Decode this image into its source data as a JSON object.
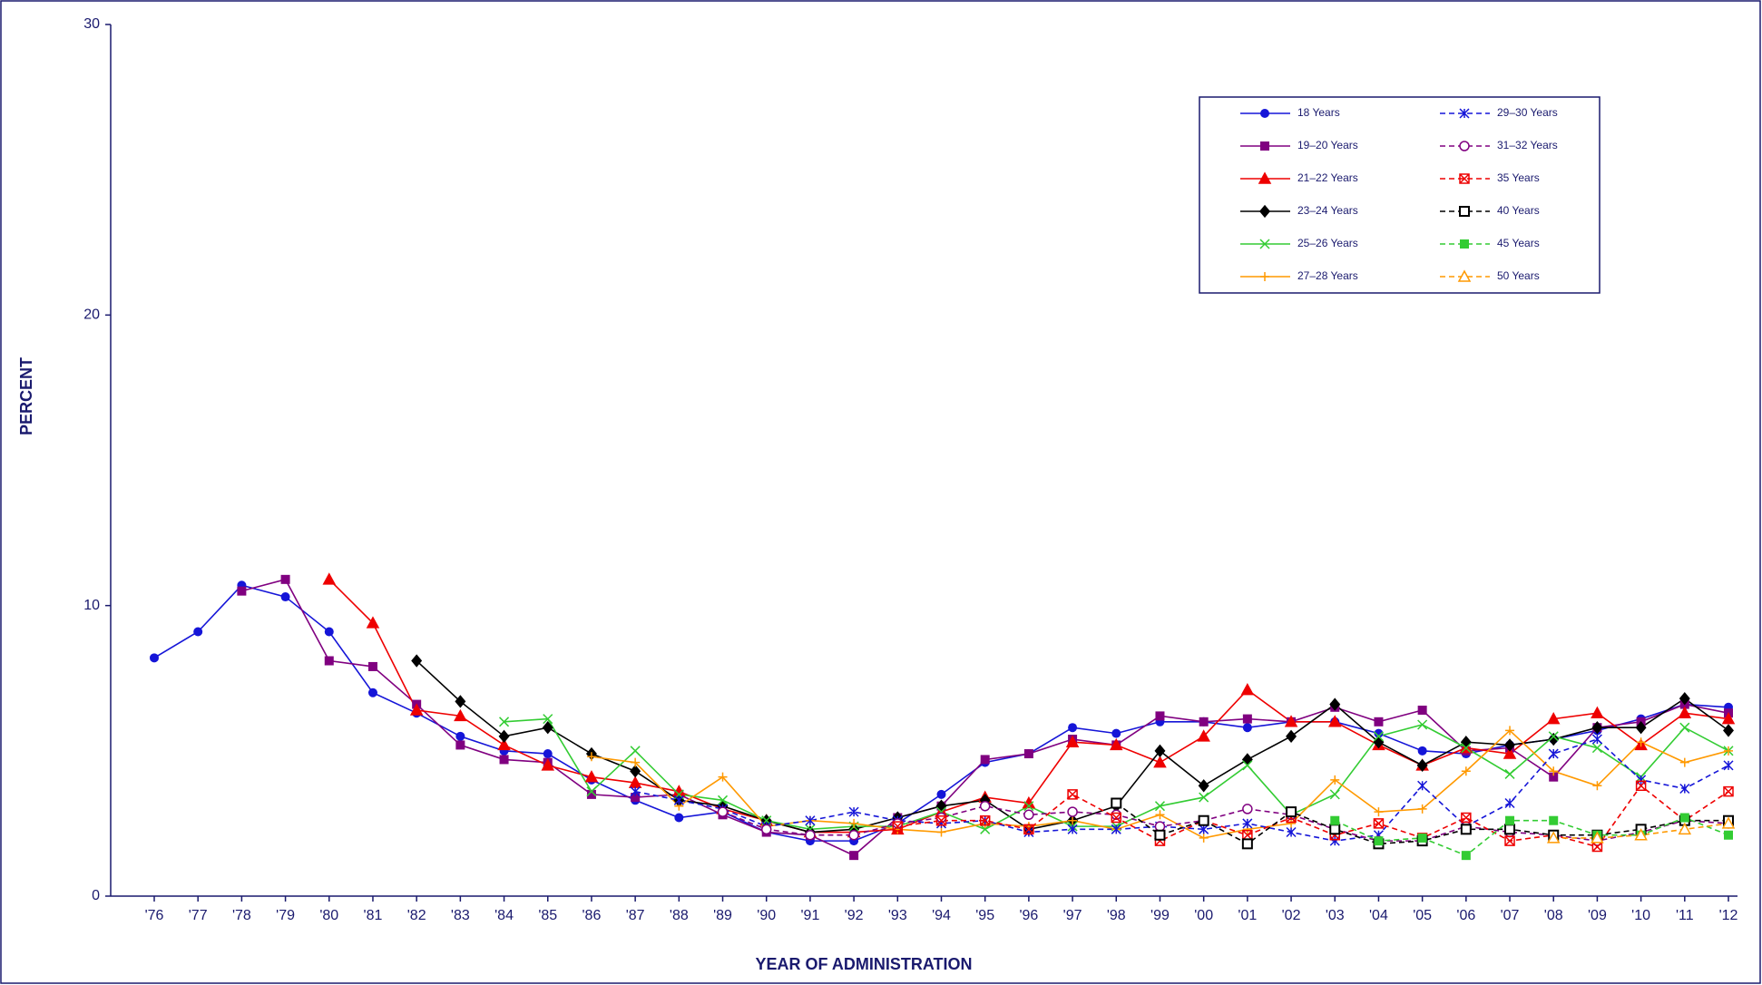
{
  "chart_data": {
    "type": "line",
    "y_label": "PERCENT",
    "x_label": "YEAR OF ADMINISTRATION",
    "categories": [
      "'76",
      "'77",
      "'78",
      "'79",
      "'80",
      "'81",
      "'82",
      "'83",
      "'84",
      "'85",
      "'86",
      "'87",
      "'88",
      "'89",
      "'90",
      "'91",
      "'92",
      "'93",
      "'94",
      "'95",
      "'96",
      "'97",
      "'98",
      "'99",
      "'00",
      "'01",
      "'02",
      "'03",
      "'04",
      "'05",
      "'06",
      "'07",
      "'08",
      "'09",
      "'10",
      "'11",
      "'12"
    ],
    "ylim": [
      0,
      30
    ],
    "yticks": [
      0,
      10,
      20,
      30
    ],
    "legend": "upper right",
    "series": [
      {
        "name": "18 Years",
        "color": "#1515d8",
        "marker": "circle",
        "dashed": false,
        "values": [
          8.2,
          9.1,
          10.7,
          10.3,
          9.1,
          7.0,
          6.3,
          5.5,
          5.0,
          4.9,
          4.0,
          3.3,
          2.7,
          2.9,
          2.2,
          1.9,
          1.9,
          2.5,
          3.5,
          4.6,
          4.9,
          5.8,
          5.6,
          6.0,
          6.0,
          5.8,
          6.0,
          6.0,
          5.6,
          5.0,
          4.9,
          5.2,
          5.4,
          5.7,
          6.1,
          6.6,
          6.5
        ]
      },
      {
        "name": "19–20 Years",
        "color": "#800080",
        "marker": "square",
        "dashed": false,
        "values": [
          null,
          null,
          10.5,
          10.9,
          8.1,
          7.9,
          6.6,
          5.2,
          4.7,
          4.6,
          3.5,
          3.4,
          3.5,
          2.8,
          2.2,
          2.1,
          1.4,
          2.7,
          3.1,
          4.7,
          4.9,
          5.4,
          5.2,
          6.2,
          6.0,
          6.1,
          6.0,
          6.5,
          6.0,
          6.4,
          5.0,
          5.1,
          4.1,
          5.8,
          6.0,
          6.6,
          6.3
        ]
      },
      {
        "name": "21–22 Years",
        "color": "#ee0000",
        "marker": "triangle",
        "dashed": false,
        "values": [
          null,
          null,
          null,
          null,
          10.9,
          9.4,
          6.4,
          6.2,
          5.2,
          4.5,
          4.1,
          3.9,
          3.6,
          3.0,
          2.6,
          2.2,
          2.2,
          2.3,
          2.9,
          3.4,
          3.2,
          5.3,
          5.2,
          4.6,
          5.5,
          7.1,
          6.0,
          6.0,
          5.2,
          4.5,
          5.1,
          4.9,
          6.1,
          6.3,
          5.2,
          6.3,
          6.1
        ]
      },
      {
        "name": "23–24 Years",
        "color": "#000000",
        "marker": "diamond",
        "dashed": false,
        "values": [
          null,
          null,
          null,
          null,
          null,
          null,
          8.1,
          6.7,
          5.5,
          5.8,
          4.9,
          4.3,
          3.3,
          3.1,
          2.6,
          2.2,
          2.3,
          2.7,
          3.1,
          3.3,
          2.3,
          2.6,
          3.1,
          5.0,
          3.8,
          4.7,
          5.5,
          6.6,
          5.3,
          4.5,
          5.3,
          5.2,
          5.4,
          5.8,
          5.8,
          6.8,
          5.7
        ]
      },
      {
        "name": "25–26 Years",
        "color": "#33cc33",
        "marker": "x",
        "dashed": false,
        "values": [
          null,
          null,
          null,
          null,
          null,
          null,
          null,
          null,
          6.0,
          6.1,
          3.6,
          5.0,
          3.5,
          3.3,
          2.6,
          2.3,
          2.4,
          2.4,
          2.9,
          2.3,
          3.1,
          2.4,
          2.4,
          3.1,
          3.4,
          4.5,
          2.8,
          3.5,
          5.5,
          5.9,
          5.1,
          4.2,
          5.5,
          5.1,
          4.1,
          5.8,
          5.0
        ]
      },
      {
        "name": "27–28 Years",
        "color": "#ff9900",
        "marker": "plus",
        "dashed": false,
        "values": [
          null,
          null,
          null,
          null,
          null,
          null,
          null,
          null,
          null,
          null,
          4.8,
          4.6,
          3.1,
          4.1,
          2.4,
          2.6,
          2.5,
          2.3,
          2.2,
          2.5,
          2.4,
          2.6,
          2.3,
          2.8,
          2.0,
          2.3,
          2.5,
          4.0,
          2.9,
          3.0,
          4.3,
          5.7,
          4.3,
          3.8,
          5.3,
          4.6,
          5.0
        ]
      },
      {
        "name": "29–30 Years",
        "color": "#1515d8",
        "marker": "asterisk",
        "dashed": true,
        "values": [
          null,
          null,
          null,
          null,
          null,
          null,
          null,
          null,
          null,
          null,
          null,
          3.6,
          3.3,
          3.0,
          2.4,
          2.6,
          2.9,
          2.6,
          2.5,
          2.6,
          2.2,
          2.3,
          2.3,
          2.4,
          2.3,
          2.5,
          2.2,
          1.9,
          2.1,
          3.8,
          2.4,
          3.2,
          4.9,
          5.4,
          4.0,
          3.7,
          4.5
        ]
      },
      {
        "name": "31–32 Years",
        "color": "#800080",
        "marker": "open-circle",
        "dashed": true,
        "values": [
          null,
          null,
          null,
          null,
          null,
          null,
          null,
          null,
          null,
          null,
          null,
          null,
          null,
          2.9,
          2.3,
          2.1,
          2.1,
          2.5,
          2.7,
          3.1,
          2.8,
          2.9,
          2.8,
          2.4,
          2.6,
          3.0,
          2.8,
          2.3,
          1.9,
          1.9,
          2.4,
          2.2,
          2.1,
          1.9,
          2.2,
          2.6,
          2.5
        ]
      },
      {
        "name": "35 Years",
        "color": "#ee0000",
        "marker": "x-square",
        "dashed": true,
        "values": [
          null,
          null,
          null,
          null,
          null,
          null,
          null,
          null,
          null,
          null,
          null,
          null,
          null,
          null,
          null,
          null,
          null,
          2.4,
          2.6,
          2.6,
          2.3,
          3.5,
          2.7,
          1.9,
          2.6,
          2.1,
          2.7,
          2.1,
          2.5,
          2.0,
          2.7,
          1.9,
          2.1,
          1.7,
          3.8,
          2.6,
          3.6
        ]
      },
      {
        "name": "40 Years",
        "color": "#000000",
        "marker": "open-square",
        "dashed": true,
        "values": [
          null,
          null,
          null,
          null,
          null,
          null,
          null,
          null,
          null,
          null,
          null,
          null,
          null,
          null,
          null,
          null,
          null,
          null,
          null,
          null,
          null,
          null,
          3.2,
          2.1,
          2.6,
          1.8,
          2.9,
          2.3,
          1.8,
          1.9,
          2.3,
          2.3,
          2.1,
          2.1,
          2.3,
          2.6,
          2.6
        ]
      },
      {
        "name": "45 Years",
        "color": "#33cc33",
        "marker": "square",
        "dashed": true,
        "values": [
          null,
          null,
          null,
          null,
          null,
          null,
          null,
          null,
          null,
          null,
          null,
          null,
          null,
          null,
          null,
          null,
          null,
          null,
          null,
          null,
          null,
          null,
          null,
          null,
          null,
          null,
          null,
          2.6,
          1.9,
          2.0,
          1.4,
          2.6,
          2.6,
          2.1,
          2.1,
          2.7,
          2.1
        ]
      },
      {
        "name": "50 Years",
        "color": "#ff9900",
        "marker": "open-triangle",
        "dashed": true,
        "values": [
          null,
          null,
          null,
          null,
          null,
          null,
          null,
          null,
          null,
          null,
          null,
          null,
          null,
          null,
          null,
          null,
          null,
          null,
          null,
          null,
          null,
          null,
          null,
          null,
          null,
          null,
          null,
          null,
          null,
          null,
          null,
          null,
          2.0,
          2.0,
          2.1,
          2.3,
          2.5
        ]
      }
    ]
  }
}
